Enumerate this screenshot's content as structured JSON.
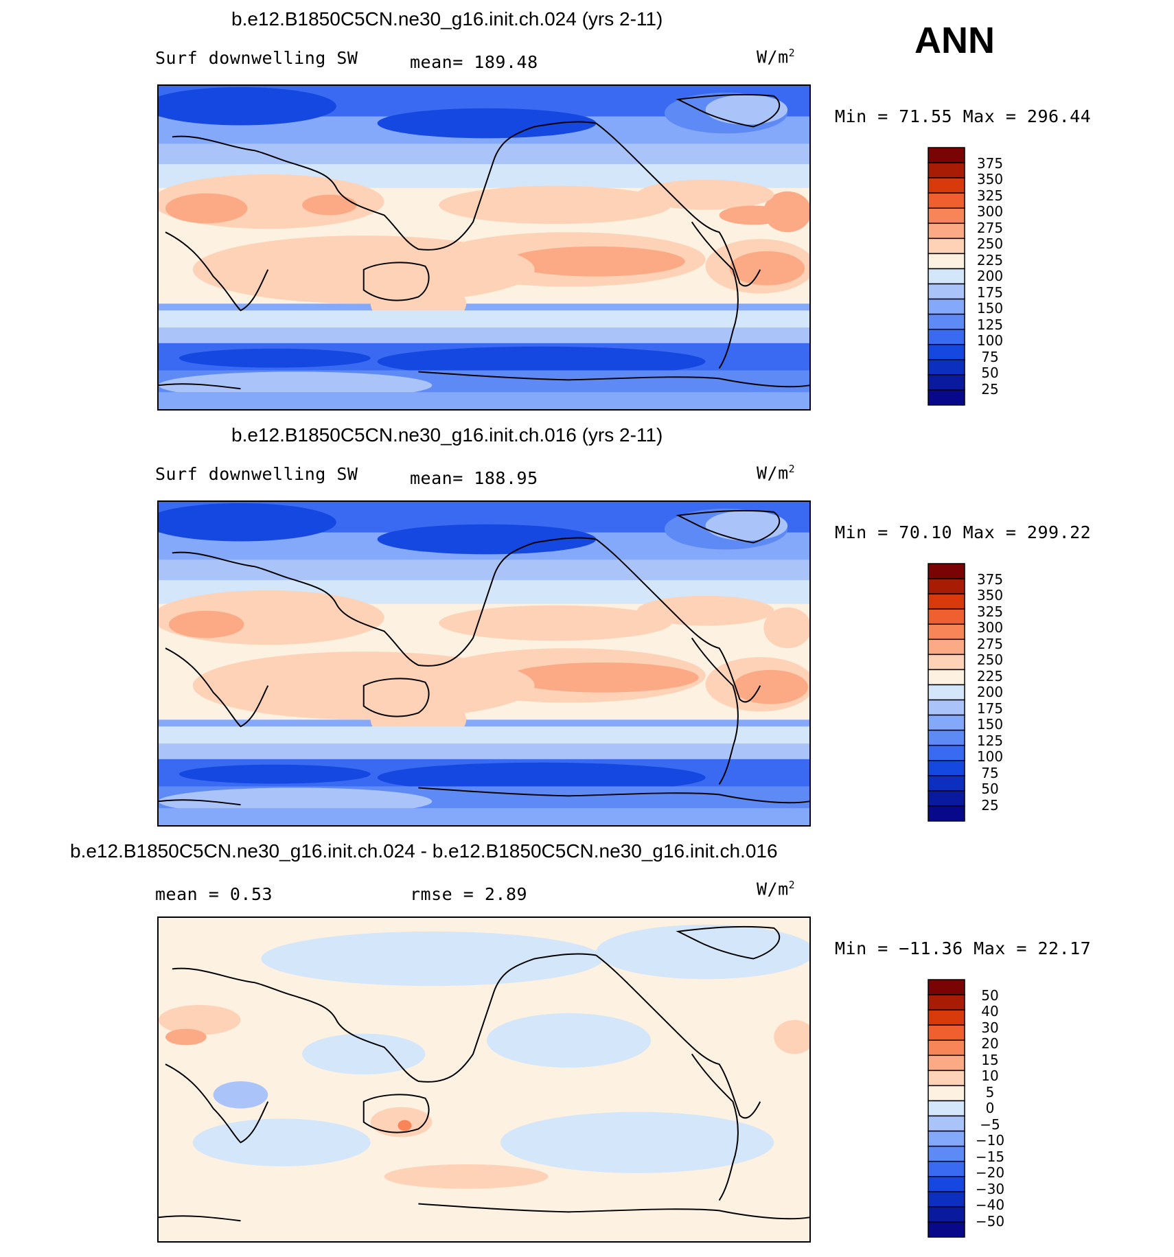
{
  "season": "ANN",
  "panels": [
    {
      "title": "b.e12.B1850C5CN.ne30_g16.init.ch.024 (yrs 2-11)",
      "left_label": "Surf downwelling SW",
      "mid_label": "mean= 189.48",
      "right_stat": "",
      "units": "W/m",
      "units_sup": "2",
      "minmax": "Min =   71.55 Max = 296.44",
      "cbar_labels": [
        "375",
        "350",
        "325",
        "300",
        "275",
        "250",
        "225",
        "200",
        "175",
        "150",
        "125",
        "100",
        "75",
        "50",
        "25"
      ]
    },
    {
      "title": "b.e12.B1850C5CN.ne30_g16.init.ch.016 (yrs 2-11)",
      "left_label": "Surf downwelling SW",
      "mid_label": "mean= 188.95",
      "right_stat": "",
      "units": "W/m",
      "units_sup": "2",
      "minmax": "Min =   70.10 Max = 299.22",
      "cbar_labels": [
        "375",
        "350",
        "325",
        "300",
        "275",
        "250",
        "225",
        "200",
        "175",
        "150",
        "125",
        "100",
        "75",
        "50",
        "25"
      ]
    },
    {
      "title": "b.e12.B1850C5CN.ne30_g16.init.ch.024 - b.e12.B1850C5CN.ne30_g16.init.ch.016",
      "left_label": "mean =    0.53",
      "mid_label": "rmse =    2.89",
      "right_stat": "",
      "units": "W/m",
      "units_sup": "2",
      "minmax": "Min = −11.36 Max =   22.17",
      "cbar_labels": [
        "50",
        "40",
        "30",
        "20",
        "15",
        "10",
        "5",
        "0",
        "−5",
        "−10",
        "−15",
        "−20",
        "−30",
        "−40",
        "−50"
      ]
    }
  ],
  "colors": {
    "scale": [
      "#08088a",
      "#0a1a9e",
      "#0c2fc0",
      "#1448e0",
      "#3a6af2",
      "#5e8af6",
      "#84a8fa",
      "#aac4fa",
      "#d4e6fa",
      "#fdf1e2",
      "#fdd2b6",
      "#fbaa85",
      "#f88558",
      "#f0602e",
      "#d83a0c",
      "#a81c06",
      "#7a0404"
    ],
    "land_line": "#000000"
  }
}
